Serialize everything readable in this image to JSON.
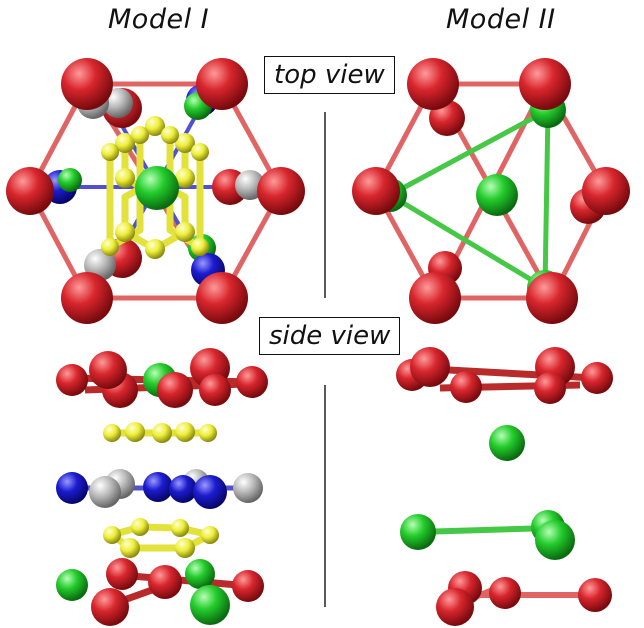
{
  "headers": {
    "model1": "Model I",
    "model2": "Model II"
  },
  "labels": {
    "top": "top view",
    "side": "side view"
  },
  "colors": {
    "red_atom": "#d0222a",
    "green_atom": "#22c82a",
    "blue_atom": "#1a1acc",
    "gray_atom": "#b4b4b4",
    "yellow_atom": "#eeee3a",
    "red_bond": "#e06464",
    "green_bond": "#45c845",
    "blue_bond": "#5050d0",
    "yellow_bond": "#e2e23a"
  }
}
